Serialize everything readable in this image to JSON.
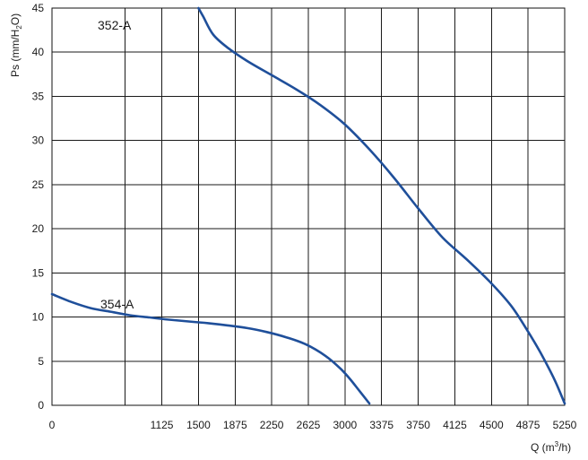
{
  "chart_data": {
    "type": "line",
    "title": "",
    "xlabel": "Q (m³/h)",
    "xlabel_main": "Q (m",
    "xlabel_sup": "3",
    "xlabel_end": "/h)",
    "ylabel": "Ps (mm/H₂O)",
    "ylabel_main": "Ps (mm/H",
    "ylabel_sub": "2",
    "ylabel_end": "O)",
    "xlim": [
      0,
      5250
    ],
    "ylim": [
      0,
      45
    ],
    "x_ticks": [
      0,
      1125,
      1500,
      1875,
      2250,
      2625,
      3000,
      3375,
      3750,
      4125,
      4500,
      4875,
      5250
    ],
    "x_tick_labels": [
      "0",
      "1125",
      "1500",
      "1875",
      "2250",
      "2625",
      "3000",
      "3375",
      "3750",
      "4125",
      "4500",
      "4875",
      "5250"
    ],
    "x_grid": [
      750,
      1125,
      1500,
      1875,
      2250,
      2625,
      3000,
      3375,
      3750,
      4125,
      4500,
      4875
    ],
    "y_ticks": [
      0,
      5,
      10,
      15,
      20,
      25,
      30,
      35,
      40,
      45
    ],
    "y_tick_labels": [
      "0",
      "5",
      "10",
      "15",
      "20",
      "25",
      "30",
      "35",
      "40",
      "45"
    ],
    "grid": true,
    "legend": "none",
    "line_color": "#1f4f9a",
    "series": [
      {
        "name": "352-A",
        "x": [
          1500,
          1550,
          1650,
          1800,
          2000,
          2250,
          2500,
          2750,
          3000,
          3250,
          3500,
          3750,
          4000,
          4250,
          4500,
          4700,
          4850,
          5000,
          5150,
          5250
        ],
        "y": [
          45,
          44,
          42,
          40.5,
          39,
          37.4,
          35.8,
          34,
          31.8,
          29,
          25.8,
          22.3,
          19,
          16.5,
          13.8,
          11.3,
          8.8,
          6,
          2.8,
          0.2
        ]
      },
      {
        "name": "354-A",
        "x": [
          0,
          200,
          400,
          600,
          800,
          1000,
          1200,
          1400,
          1600,
          1800,
          2000,
          2200,
          2400,
          2600,
          2800,
          2950,
          3050,
          3150,
          3250
        ],
        "y": [
          12.6,
          11.7,
          11,
          10.6,
          10.2,
          9.95,
          9.7,
          9.5,
          9.3,
          9.05,
          8.75,
          8.3,
          7.7,
          6.9,
          5.6,
          4.2,
          3.0,
          1.6,
          0.2
        ]
      }
    ]
  }
}
